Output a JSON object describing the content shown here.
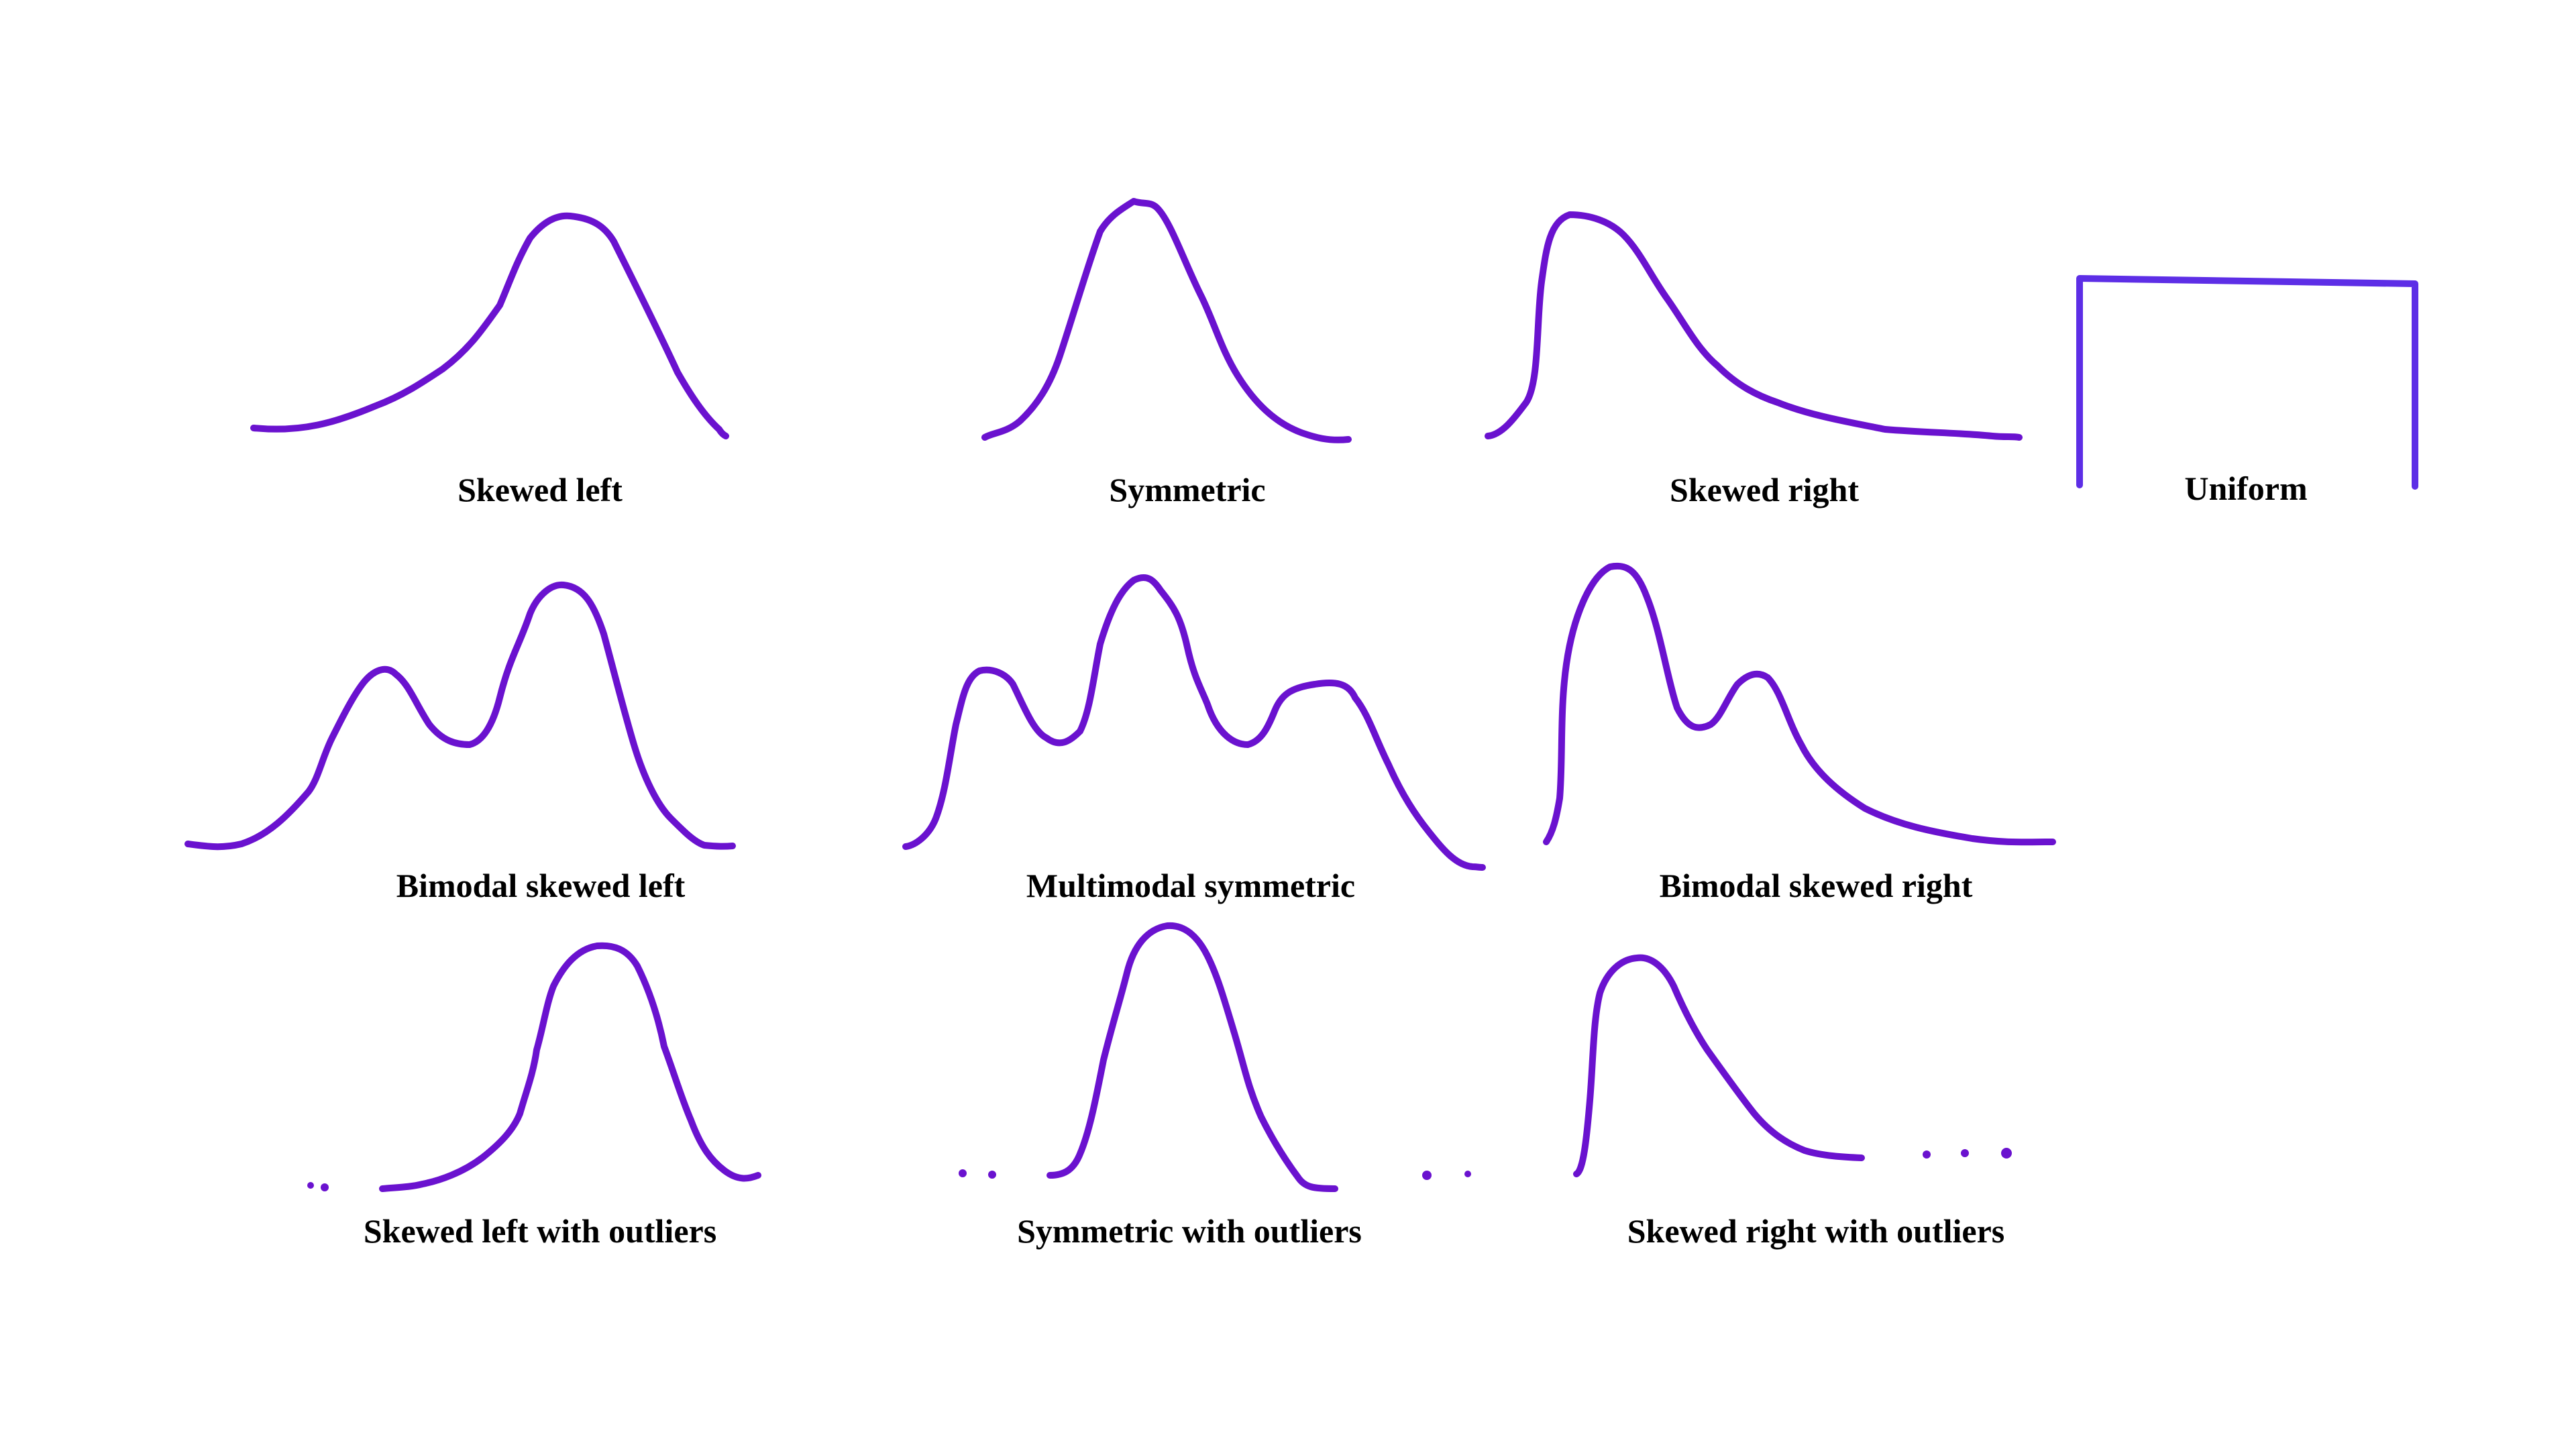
{
  "colors": {
    "curve_stroke": "#6a12cf",
    "uniform_stroke": "#5d2ee6",
    "label_text": "#000000",
    "background": "#ffffff"
  },
  "shapes": [
    {
      "id": "skewed-left",
      "label": "Skewed left"
    },
    {
      "id": "symmetric",
      "label": "Symmetric"
    },
    {
      "id": "skewed-right",
      "label": "Skewed right"
    },
    {
      "id": "uniform",
      "label": "Uniform"
    },
    {
      "id": "bimodal-skewed-left",
      "label": "Bimodal skewed left"
    },
    {
      "id": "multimodal-symmetric",
      "label": "Multimodal symmetric"
    },
    {
      "id": "bimodal-skewed-right",
      "label": "Bimodal skewed right"
    },
    {
      "id": "skewed-left-with-outliers",
      "label": "Skewed left with outliers"
    },
    {
      "id": "symmetric-with-outliers",
      "label": "Symmetric with outliers"
    },
    {
      "id": "skewed-right-with-outliers",
      "label": "Skewed right with outliers"
    }
  ]
}
